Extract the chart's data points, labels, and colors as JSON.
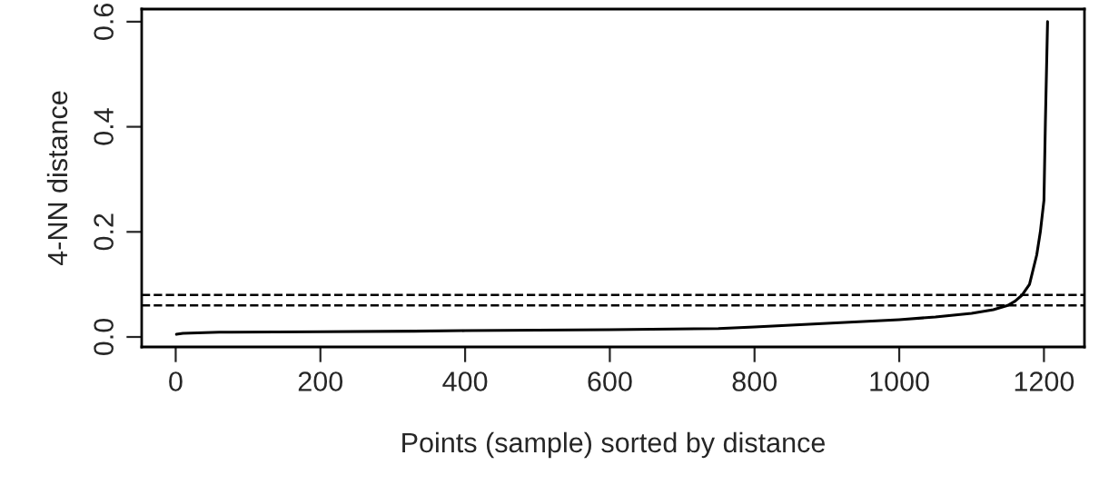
{
  "chart_data": {
    "type": "line",
    "xlabel": "Points (sample) sorted by distance",
    "ylabel": "4-NN distance",
    "x": [
      1,
      10,
      60,
      200,
      330,
      400,
      600,
      750,
      800,
      900,
      1000,
      1050,
      1100,
      1130,
      1150,
      1160,
      1170,
      1180,
      1190,
      1195,
      1200,
      1202,
      1205
    ],
    "series": [
      {
        "color": "#000000",
        "values": [
          0.005,
          0.007,
          0.009,
          0.01,
          0.011,
          0.012,
          0.014,
          0.016,
          0.019,
          0.026,
          0.033,
          0.038,
          0.045,
          0.052,
          0.06,
          0.068,
          0.08,
          0.1,
          0.156,
          0.2,
          0.26,
          0.41,
          0.6
        ]
      }
    ],
    "xlim": [
      -47,
      1256
    ],
    "ylim": [
      -0.019,
      0.624
    ],
    "xticks": [
      0,
      200,
      400,
      600,
      800,
      1000,
      1200
    ],
    "yticks": [
      {
        "value": 0,
        "label": "0.0"
      },
      0.2,
      0.4,
      0.6
    ],
    "ref_lines": [
      {
        "axis": "y",
        "value": 0.08,
        "line_style": "dashed",
        "color": "#000000"
      },
      {
        "axis": "y",
        "value": 0.06,
        "line_style": "dashed",
        "color": "#000000"
      }
    ],
    "grid": false,
    "legend": false,
    "marker": "none",
    "line_style": "solid"
  }
}
